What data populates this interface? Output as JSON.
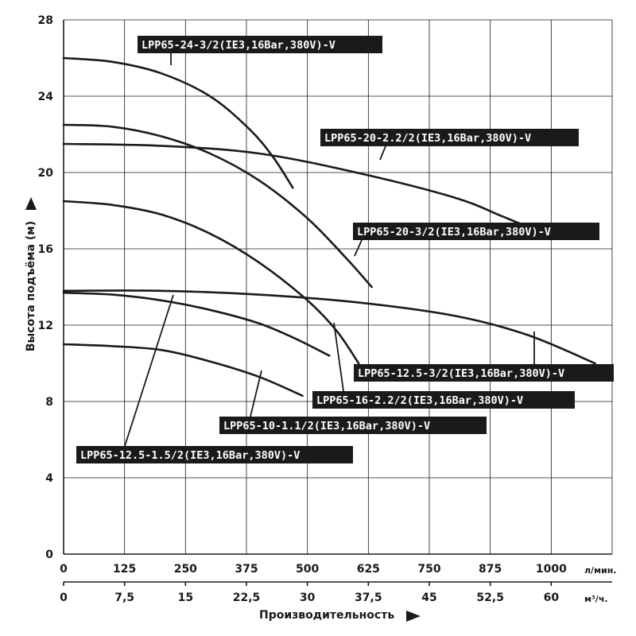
{
  "chart_data": {
    "type": "line",
    "xlabel": "Производительность",
    "ylabel": "Высота подъёма (м)",
    "x_unit_primary": "л/мин.",
    "x_unit_secondary": "м³/ч.",
    "xlim": [
      0,
      1125
    ],
    "ylim": [
      0,
      28
    ],
    "grid": true,
    "x_ticks_primary": [
      "0",
      "125",
      "250",
      "375",
      "500",
      "625",
      "750",
      "875",
      "1000"
    ],
    "x_ticks_secondary": [
      "0",
      "7,5",
      "15",
      "22,5",
      "30",
      "37,5",
      "45",
      "52,5",
      "60"
    ],
    "y_ticks": [
      "0",
      "4",
      "8",
      "12",
      "16",
      "20",
      "24",
      "28"
    ],
    "series": [
      {
        "name": "LPP65-24-3/2(IE3,16Bar,380V)-V",
        "x": [
          0,
          100,
          200,
          300,
          380,
          430,
          470
        ],
        "y": [
          26.0,
          25.8,
          25.2,
          24.0,
          22.3,
          20.8,
          19.2
        ]
      },
      {
        "name": "LPP65-20-2.2/2(IE3,16Bar,380V)-V",
        "x": [
          0,
          200,
          400,
          600,
          800,
          900,
          975
        ],
        "y": [
          21.5,
          21.4,
          21.0,
          20.0,
          18.7,
          17.7,
          16.9
        ]
      },
      {
        "name": "LPP65-20-3/2(IE3,16Bar,380V)-V",
        "x": [
          0,
          100,
          200,
          300,
          400,
          500,
          580,
          632
        ],
        "y": [
          22.5,
          22.4,
          21.9,
          21.0,
          19.6,
          17.6,
          15.5,
          14.0
        ]
      },
      {
        "name": "LPP65-16-2.2/2(IE3,16Bar,380V)-V",
        "x": [
          0,
          100,
          200,
          300,
          400,
          500,
          560,
          605
        ],
        "y": [
          18.5,
          18.3,
          17.8,
          16.8,
          15.3,
          13.3,
          11.7,
          10.0
        ]
      },
      {
        "name": "LPP65-12.5-3/2(IE3,16Bar,380V)-V",
        "x": [
          0,
          200,
          400,
          600,
          800,
          950,
          1090
        ],
        "y": [
          13.8,
          13.8,
          13.6,
          13.2,
          12.5,
          11.5,
          10.0
        ]
      },
      {
        "name": "LPP65-12.5-1.5/2(IE3,16Bar,380V)-V",
        "x": [
          0,
          100,
          200,
          300,
          400,
          475,
          545
        ],
        "y": [
          13.7,
          13.6,
          13.3,
          12.8,
          12.1,
          11.3,
          10.4
        ]
      },
      {
        "name": "LPP65-10-1.1/2(IE3,16Bar,380V)-V",
        "x": [
          0,
          100,
          200,
          300,
          400,
          490
        ],
        "y": [
          11.0,
          10.9,
          10.7,
          10.1,
          9.3,
          8.3
        ]
      }
    ]
  }
}
